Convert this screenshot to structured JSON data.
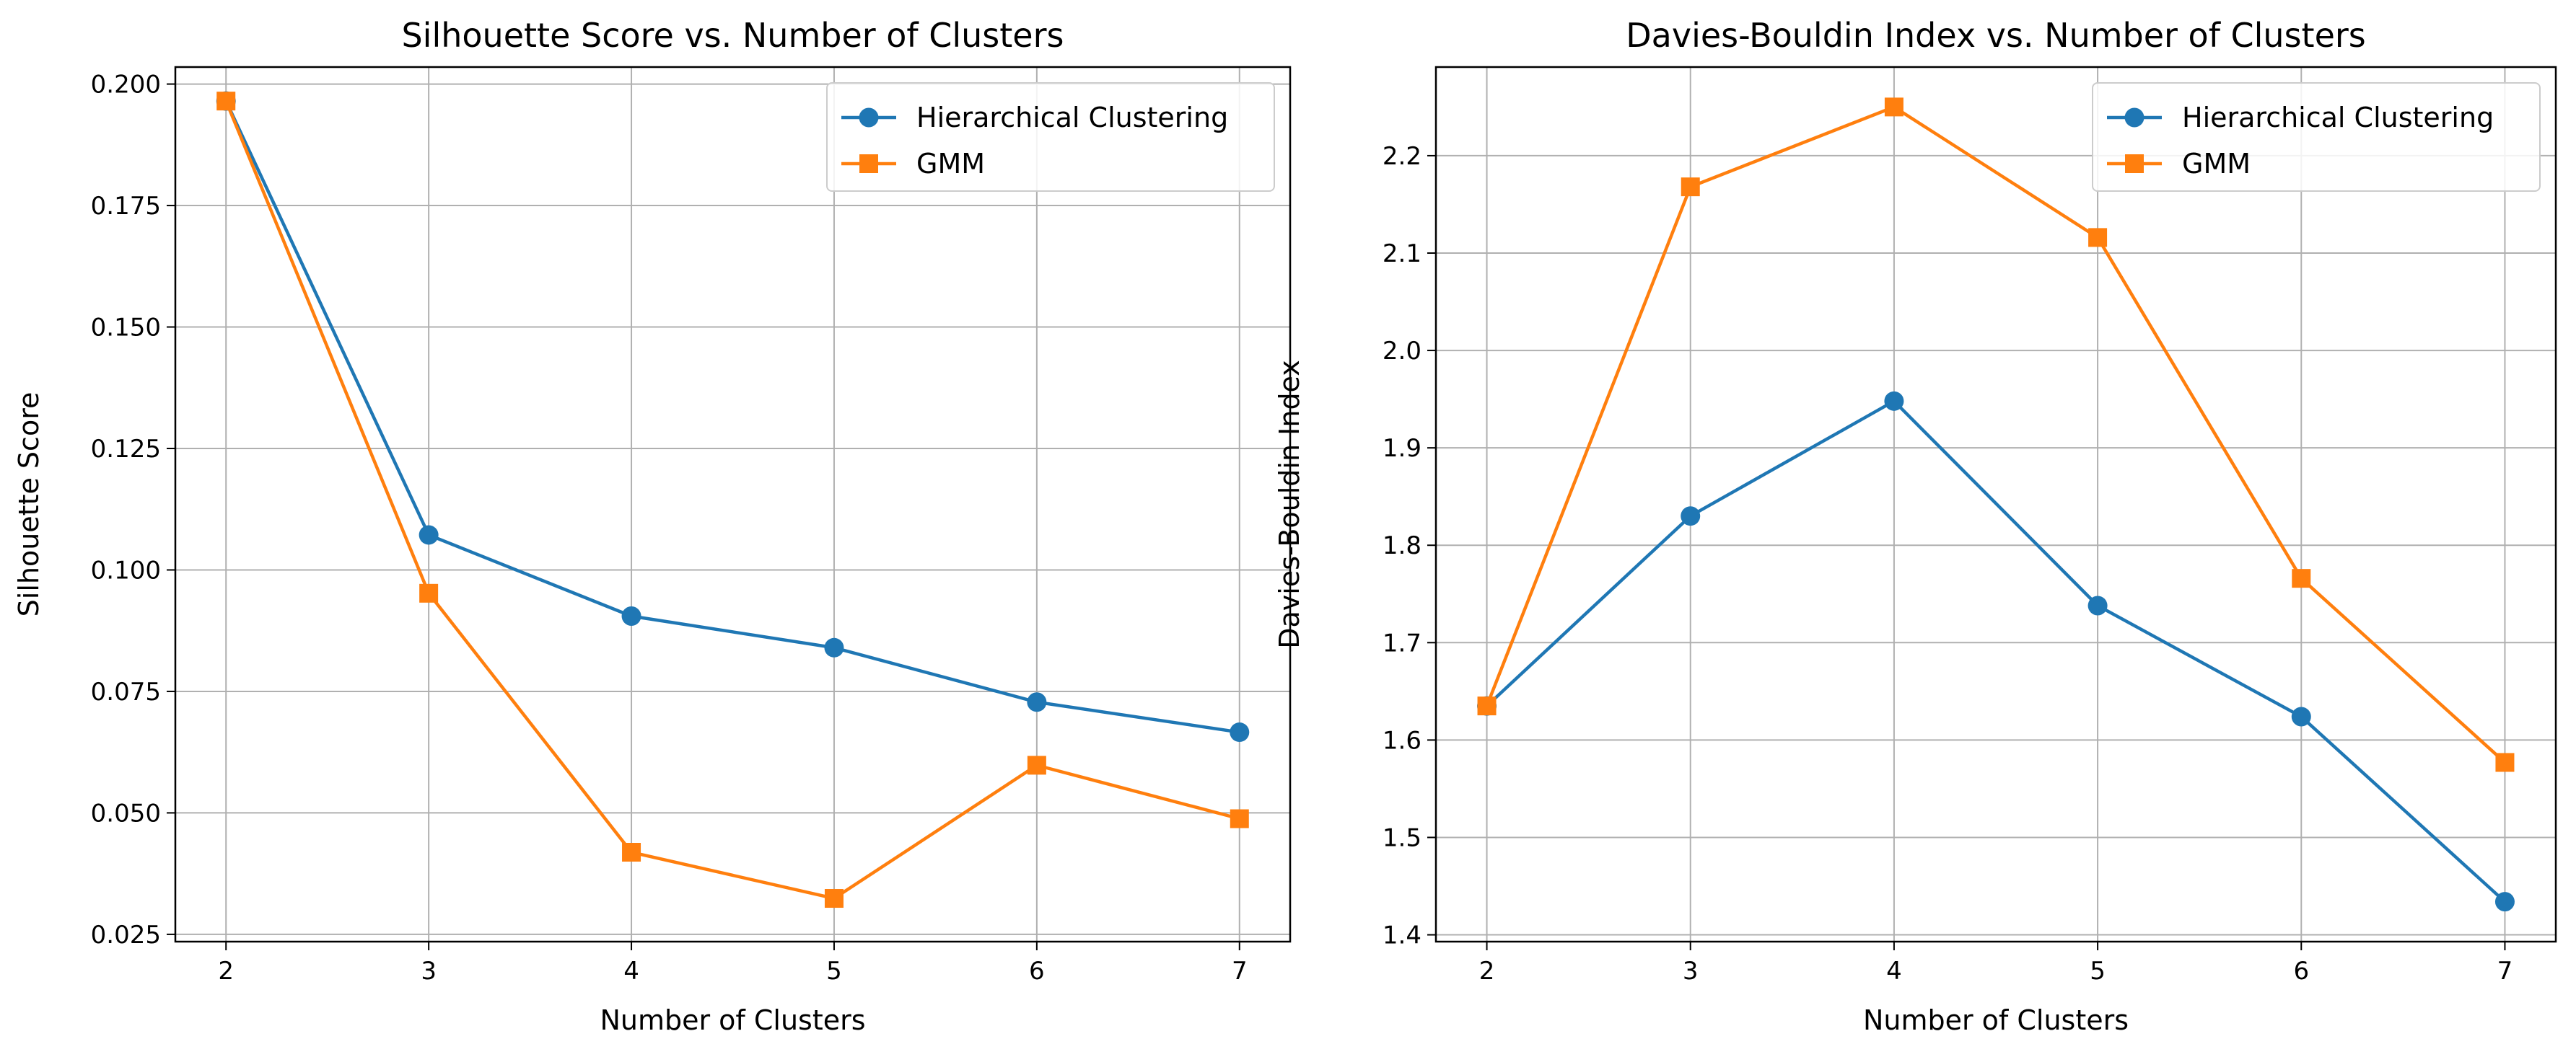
{
  "chart_data": [
    {
      "type": "line",
      "title": "Silhouette Score vs. Number of Clusters",
      "xlabel": "Number of Clusters",
      "ylabel": "Silhouette Score",
      "x": [
        2,
        3,
        4,
        5,
        6,
        7
      ],
      "xticks": [
        "2",
        "3",
        "4",
        "5",
        "6",
        "7"
      ],
      "yticks": [
        "0.025",
        "0.050",
        "0.075",
        "0.100",
        "0.125",
        "0.150",
        "0.175",
        "0.200"
      ],
      "ytick_values": [
        0.025,
        0.05,
        0.075,
        0.1,
        0.125,
        0.15,
        0.175,
        0.2
      ],
      "xlim": [
        1.75,
        7.25
      ],
      "ylim": [
        0.0235,
        0.2035
      ],
      "grid": true,
      "legend": "top-right",
      "series": [
        {
          "name": "Hierarchical Clustering",
          "marker": "circle",
          "color": "#1f77b4",
          "values": [
            0.1965,
            0.1072,
            0.0905,
            0.084,
            0.0728,
            0.0666
          ]
        },
        {
          "name": "GMM",
          "marker": "square",
          "color": "#ff7f0e",
          "values": [
            0.1965,
            0.0952,
            0.0419,
            0.0324,
            0.0598,
            0.0488
          ]
        }
      ]
    },
    {
      "type": "line",
      "title": "Davies-Bouldin Index vs. Number of Clusters",
      "xlabel": "Number of Clusters",
      "ylabel": "Davies-Bouldin Index",
      "x": [
        2,
        3,
        4,
        5,
        6,
        7
      ],
      "xticks": [
        "2",
        "3",
        "4",
        "5",
        "6",
        "7"
      ],
      "yticks": [
        "1.4",
        "1.5",
        "1.6",
        "1.7",
        "1.8",
        "1.9",
        "2.0",
        "2.1",
        "2.2"
      ],
      "ytick_values": [
        1.4,
        1.5,
        1.6,
        1.7,
        1.8,
        1.9,
        2.0,
        2.1,
        2.2
      ],
      "xlim": [
        1.75,
        7.25
      ],
      "ylim": [
        1.393,
        2.291
      ],
      "grid": true,
      "legend": "top-right",
      "series": [
        {
          "name": "Hierarchical Clustering",
          "marker": "circle",
          "color": "#1f77b4",
          "values": [
            1.635,
            1.83,
            1.948,
            1.738,
            1.624,
            1.434
          ]
        },
        {
          "name": "GMM",
          "marker": "square",
          "color": "#ff7f0e",
          "values": [
            1.635,
            2.168,
            2.25,
            2.116,
            1.766,
            1.577
          ]
        }
      ]
    }
  ]
}
